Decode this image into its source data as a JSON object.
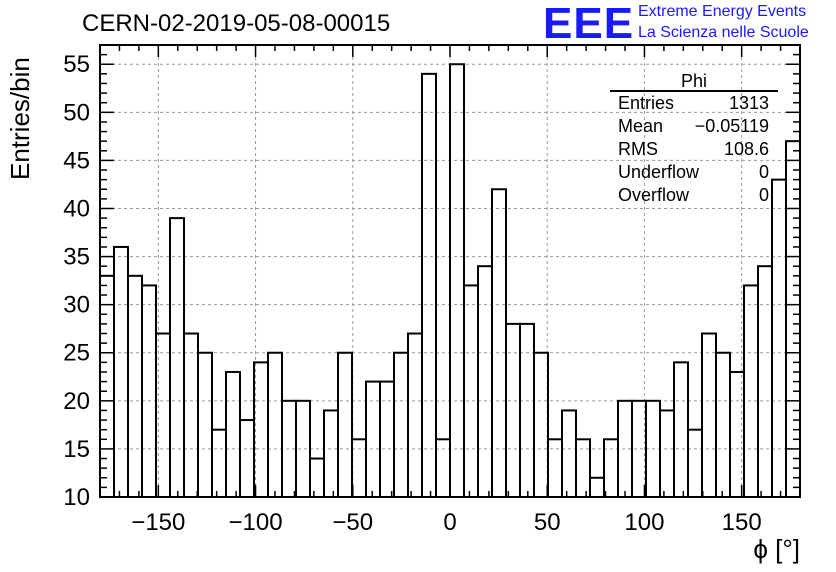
{
  "header": {
    "run_title": "CERN-02-2019-05-08-00015",
    "logo_text": "EEE",
    "logo_line1": "Extreme Energy Events",
    "logo_line2": "La Scienza nelle Scuole",
    "brand_color": "#1a1aff"
  },
  "stats": {
    "name": "Phi",
    "rows": [
      {
        "label": "Entries",
        "value": "1313"
      },
      {
        "label": "Mean",
        "value": "−0.05119"
      },
      {
        "label": "RMS",
        "value": "108.6"
      },
      {
        "label": "Underflow",
        "value": "0"
      },
      {
        "label": "Overflow",
        "value": "0"
      }
    ]
  },
  "chart_data": {
    "type": "histogram",
    "title": "",
    "xlabel": "ϕ [°]",
    "ylabel": "Entries/bin",
    "xlim": [
      -180,
      180
    ],
    "ylim": [
      10,
      57
    ],
    "bin_width": 7.2,
    "x_ticks": [
      -150,
      -100,
      -50,
      0,
      50,
      100,
      150
    ],
    "x_tick_labels": [
      "−150",
      "−100",
      "−50",
      "0",
      "50",
      "100",
      "150"
    ],
    "y_ticks": [
      10,
      15,
      20,
      25,
      30,
      35,
      40,
      45,
      50,
      55
    ],
    "y_tick_labels": [
      "10",
      "15",
      "20",
      "25",
      "30",
      "35",
      "40",
      "45",
      "50",
      "55"
    ],
    "grid": true,
    "values": [
      33,
      36,
      33,
      32,
      27,
      39,
      27,
      25,
      17,
      23,
      18,
      24,
      25,
      20,
      20,
      14,
      19,
      25,
      16,
      22,
      22,
      25,
      27,
      54,
      16,
      55,
      32,
      34,
      42,
      28,
      28,
      25,
      16,
      19,
      16,
      12,
      16,
      20,
      20,
      20,
      19,
      24,
      17,
      27,
      25,
      23,
      32,
      34,
      43,
      47
    ]
  }
}
